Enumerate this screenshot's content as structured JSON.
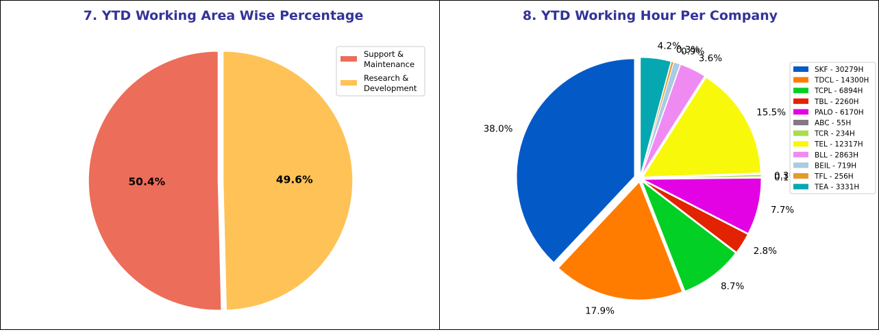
{
  "chart_data": [
    {
      "type": "pie",
      "title": "7. YTD Working Area Wise Percentage",
      "legend_position": "top-right",
      "slices": [
        {
          "label": [
            "Support &",
            "Maintenance"
          ],
          "value": 50.4,
          "pct_label": "50.4%",
          "color": "#EC6D59"
        },
        {
          "label": [
            "Research &",
            "Development"
          ],
          "value": 49.6,
          "pct_label": "49.6%",
          "color": "#FFC256"
        }
      ]
    },
    {
      "type": "pie",
      "title": "8. YTD Working Hour Per Company",
      "legend_position": "right",
      "slices": [
        {
          "label": "SKF - 30279H",
          "value": 30279,
          "pct_label": "38.0%",
          "color": "#035AC7"
        },
        {
          "label": "TDCL - 14300H",
          "value": 14300,
          "pct_label": "17.9%",
          "color": "#FF7C01"
        },
        {
          "label": "TCPL - 6894H",
          "value": 6894,
          "pct_label": "8.7%",
          "color": "#03D025"
        },
        {
          "label": "TBL - 2260H",
          "value": 2260,
          "pct_label": "2.8%",
          "color": "#E22302"
        },
        {
          "label": "PALO - 6170H",
          "value": 6170,
          "pct_label": "7.7%",
          "color": "#E202E4"
        },
        {
          "label": "ABC - 55H",
          "value": 55,
          "pct_label": "0.1%",
          "color": "#847786"
        },
        {
          "label": "TCR - 234H",
          "value": 234,
          "pct_label": "0.3%",
          "color": "#A8DD4C"
        },
        {
          "label": "TEL - 12317H",
          "value": 12317,
          "pct_label": "15.5%",
          "color": "#F8F80B"
        },
        {
          "label": "BLL - 2863H",
          "value": 2863,
          "pct_label": "3.6%",
          "color": "#F08AF3"
        },
        {
          "label": "BEIL - 719H",
          "value": 719,
          "pct_label": "0.9%",
          "color": "#A9CBE4"
        },
        {
          "label": "TFL - 256H",
          "value": 256,
          "pct_label": "0.3%",
          "color": "#E39B2C"
        },
        {
          "label": "TEA - 3331H",
          "value": 3331,
          "pct_label": "4.2%",
          "color": "#05A8B0"
        }
      ]
    }
  ]
}
